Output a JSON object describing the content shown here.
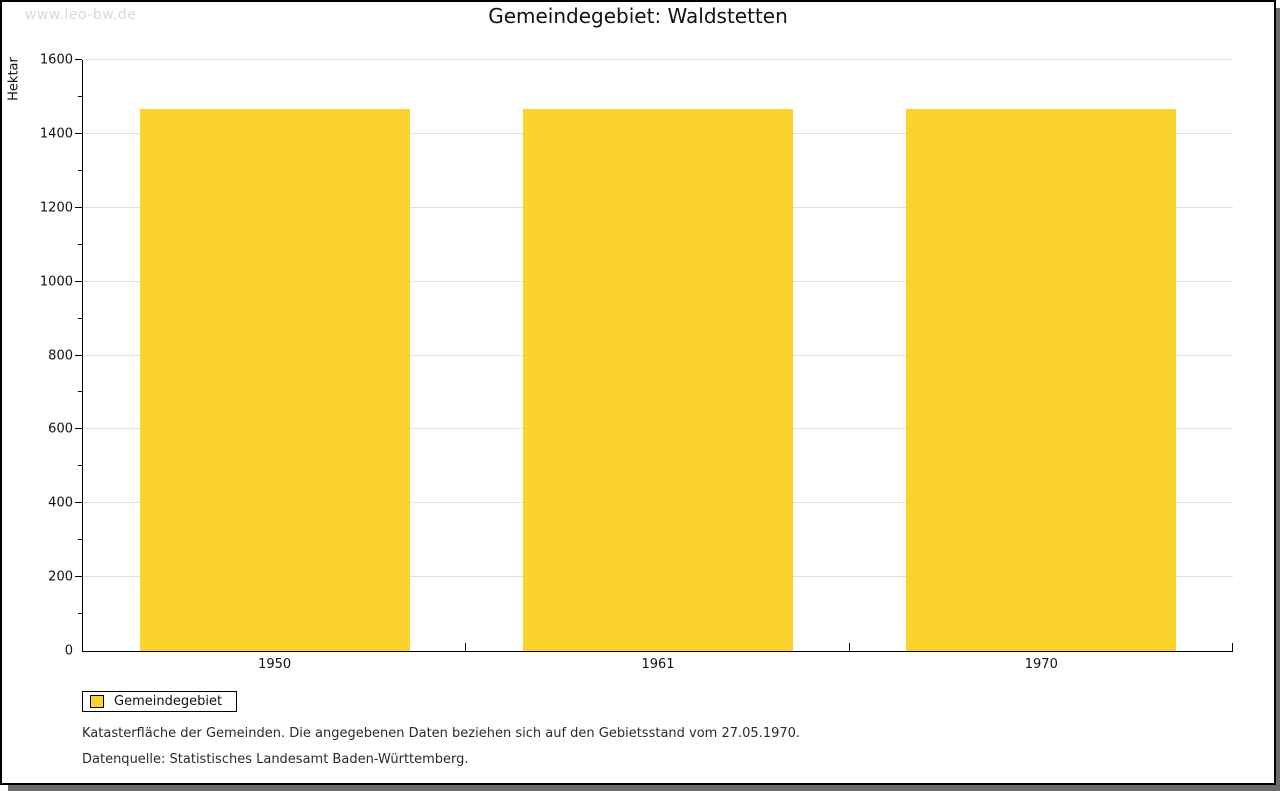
{
  "watermark": "www.leo-bw.de",
  "chart_data": {
    "type": "bar",
    "title": "Gemeindegebiet: Waldstetten",
    "ylabel": "Hektar",
    "xlabel": "",
    "categories": [
      "1950",
      "1961",
      "1970"
    ],
    "series": [
      {
        "name": "Gemeindegebiet",
        "values": [
          1468,
          1468,
          1468
        ]
      }
    ],
    "ylim": [
      0,
      1600
    ],
    "ytick_step": 200,
    "yminor_step": 100,
    "grid": "horizontal",
    "legend_position": "bottom-left",
    "bar_color": "#fcd32d"
  },
  "legend": {
    "items": [
      {
        "label": "Gemeindegebiet",
        "color": "#fcd32d"
      }
    ]
  },
  "footnotes": [
    "Katasterfläche der Gemeinden. Die angegebenen Daten beziehen sich auf den Gebietsstand vom 27.05.1970.",
    "Datenquelle: Statistisches Landesamt Baden-Württemberg."
  ]
}
